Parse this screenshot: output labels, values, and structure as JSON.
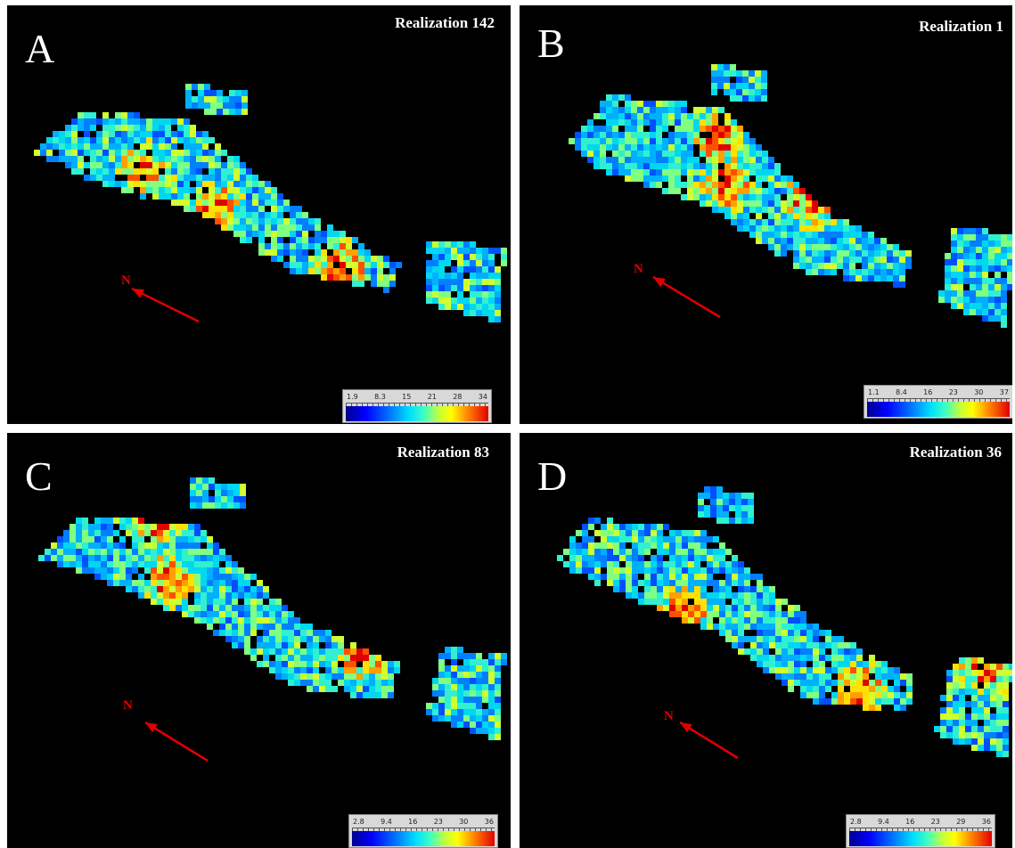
{
  "panels": [
    {
      "letter": "A",
      "title": "Realization 142",
      "scale": [
        "1.9",
        "8.3",
        "15",
        "21",
        "28",
        "34"
      ],
      "north": "N"
    },
    {
      "letter": "B",
      "title": "Realization 1",
      "scale": [
        "1.1",
        "8.4",
        "16",
        "23",
        "30",
        "37"
      ],
      "north": "N"
    },
    {
      "letter": "C",
      "title": "Realization 83",
      "scale": [
        "2.8",
        "9.4",
        "16",
        "23",
        "30",
        "36"
      ],
      "north": "N"
    },
    {
      "letter": "D",
      "title": "Realization 36",
      "scale": [
        "2.8",
        "9.4",
        "16",
        "23",
        "29",
        "36"
      ],
      "north": "N"
    }
  ],
  "colors": {
    "background": "#000000",
    "arrow": "#e00000",
    "low": "#0000ff",
    "mid": "#00e0ff",
    "high": "#e00000"
  }
}
